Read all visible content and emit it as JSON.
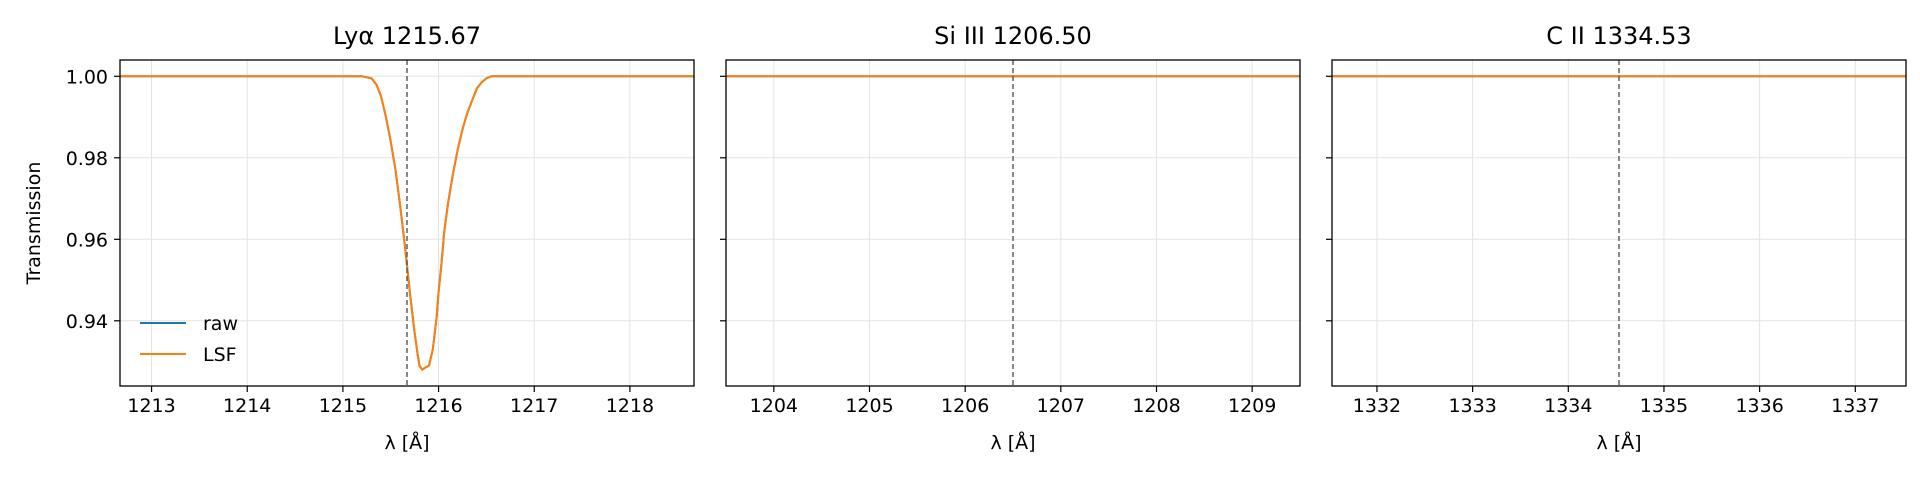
{
  "chart_data": [
    {
      "type": "line",
      "title": "Lyα 1215.67",
      "xlabel": "λ [Å]",
      "ylabel": "Transmission",
      "xlim": [
        1212.67,
        1218.67
      ],
      "ylim": [
        0.924,
        1.004
      ],
      "xticks": [
        1213,
        1214,
        1215,
        1216,
        1217,
        1218
      ],
      "xtick_labels": [
        "1213",
        "1214",
        "1215",
        "1216",
        "1217",
        "1218"
      ],
      "yticks": [
        0.94,
        0.96,
        0.98,
        1.0
      ],
      "ytick_labels": [
        "0.94",
        "0.96",
        "0.98",
        "1.00"
      ],
      "line_center": 1215.67,
      "grid": true,
      "legend": {
        "location": "lower-left",
        "entries": [
          "raw",
          "LSF"
        ]
      },
      "series": [
        {
          "name": "raw",
          "color": "#1f77b4",
          "x": [
            1212.67,
            1215.0,
            1215.2,
            1215.3,
            1215.35,
            1215.4,
            1215.45,
            1215.5,
            1215.55,
            1215.6,
            1215.65,
            1215.7,
            1215.72,
            1215.75,
            1215.78,
            1215.8,
            1215.83,
            1215.86,
            1215.9,
            1215.94,
            1215.98,
            1216.0,
            1216.03,
            1216.06,
            1216.1,
            1216.15,
            1216.2,
            1216.25,
            1216.3,
            1216.35,
            1216.4,
            1216.45,
            1216.5,
            1216.55,
            1216.6,
            1216.7,
            1218.67
          ],
          "y": [
            1.0,
            1.0,
            1.0,
            0.9995,
            0.998,
            0.995,
            0.99,
            0.984,
            0.977,
            0.968,
            0.958,
            0.947,
            0.943,
            0.937,
            0.932,
            0.929,
            0.928,
            0.9285,
            0.929,
            0.933,
            0.941,
            0.947,
            0.954,
            0.962,
            0.969,
            0.976,
            0.982,
            0.987,
            0.991,
            0.994,
            0.997,
            0.9985,
            0.9995,
            1.0,
            1.0,
            1.0,
            1.0
          ]
        },
        {
          "name": "LSF",
          "color": "#ff7f0e",
          "x": [
            1212.67,
            1215.0,
            1215.2,
            1215.3,
            1215.35,
            1215.4,
            1215.45,
            1215.5,
            1215.55,
            1215.6,
            1215.65,
            1215.7,
            1215.72,
            1215.75,
            1215.78,
            1215.8,
            1215.83,
            1215.86,
            1215.9,
            1215.94,
            1215.98,
            1216.0,
            1216.03,
            1216.06,
            1216.1,
            1216.15,
            1216.2,
            1216.25,
            1216.3,
            1216.35,
            1216.4,
            1216.45,
            1216.5,
            1216.55,
            1216.6,
            1216.7,
            1218.67
          ],
          "y": [
            1.0,
            1.0,
            1.0,
            0.9995,
            0.998,
            0.995,
            0.99,
            0.984,
            0.977,
            0.968,
            0.958,
            0.947,
            0.943,
            0.937,
            0.932,
            0.929,
            0.928,
            0.9285,
            0.929,
            0.933,
            0.941,
            0.947,
            0.954,
            0.962,
            0.969,
            0.976,
            0.982,
            0.987,
            0.991,
            0.994,
            0.997,
            0.9985,
            0.9995,
            1.0,
            1.0,
            1.0,
            1.0
          ]
        }
      ]
    },
    {
      "type": "line",
      "title": "Si III 1206.50",
      "xlabel": "λ [Å]",
      "ylabel": "",
      "xlim": [
        1203.5,
        1209.5
      ],
      "ylim": [
        0.924,
        1.004
      ],
      "xticks": [
        1204,
        1205,
        1206,
        1207,
        1208,
        1209
      ],
      "xtick_labels": [
        "1204",
        "1205",
        "1206",
        "1207",
        "1208",
        "1209"
      ],
      "yticks": [
        0.94,
        0.96,
        0.98,
        1.0
      ],
      "ytick_labels": [],
      "line_center": 1206.5,
      "grid": true,
      "series": [
        {
          "name": "raw",
          "color": "#1f77b4",
          "x": [
            1203.5,
            1209.5
          ],
          "y": [
            1.0,
            1.0
          ]
        },
        {
          "name": "LSF",
          "color": "#ff7f0e",
          "x": [
            1203.5,
            1209.5
          ],
          "y": [
            1.0,
            1.0
          ]
        }
      ]
    },
    {
      "type": "line",
      "title": "C II 1334.53",
      "xlabel": "λ [Å]",
      "ylabel": "",
      "xlim": [
        1331.53,
        1337.53
      ],
      "ylim": [
        0.924,
        1.004
      ],
      "xticks": [
        1332,
        1333,
        1334,
        1335,
        1336,
        1337
      ],
      "xtick_labels": [
        "1332",
        "1333",
        "1334",
        "1335",
        "1336",
        "1337"
      ],
      "yticks": [
        0.94,
        0.96,
        0.98,
        1.0
      ],
      "ytick_labels": [],
      "line_center": 1334.53,
      "grid": true,
      "series": [
        {
          "name": "raw",
          "color": "#1f77b4",
          "x": [
            1331.53,
            1337.53
          ],
          "y": [
            1.0,
            1.0
          ]
        },
        {
          "name": "LSF",
          "color": "#ff7f0e",
          "x": [
            1331.53,
            1337.53
          ],
          "y": [
            1.0,
            1.0
          ]
        }
      ]
    }
  ]
}
